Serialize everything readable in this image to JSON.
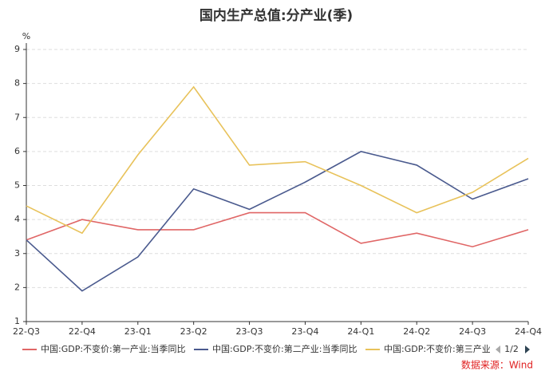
{
  "chart_data": {
    "type": "line",
    "title": "国内生产总值:分产业(季)",
    "y_unit": "%",
    "categories": [
      "22-Q3",
      "22-Q4",
      "23-Q1",
      "23-Q2",
      "23-Q3",
      "23-Q4",
      "24-Q1",
      "24-Q2",
      "24-Q3",
      "24-Q4"
    ],
    "series": [
      {
        "name": "中国:GDP:不变价:第一产业:当季同比",
        "color": "#e06666",
        "values": [
          3.4,
          4.0,
          3.7,
          3.7,
          4.2,
          4.2,
          3.3,
          3.6,
          3.2,
          3.7
        ]
      },
      {
        "name": "中国:GDP:不变价:第二产业:当季同比",
        "color": "#4a5a8e",
        "values": [
          3.4,
          1.9,
          2.9,
          4.9,
          4.3,
          5.1,
          6.0,
          5.6,
          4.6,
          5.2
        ]
      },
      {
        "name": "中国:GDP:不变价:第三产业:当季同比",
        "color": "#e8c25a",
        "values": [
          4.4,
          3.6,
          5.9,
          7.9,
          5.6,
          5.7,
          5.0,
          4.2,
          4.8,
          5.8
        ]
      }
    ],
    "ylim": [
      1,
      9
    ],
    "yticks": [
      1,
      2,
      3,
      4,
      5,
      6,
      7,
      8,
      9
    ],
    "grid": true,
    "legend_page": "1/2",
    "source": "数据来源：Wind"
  }
}
